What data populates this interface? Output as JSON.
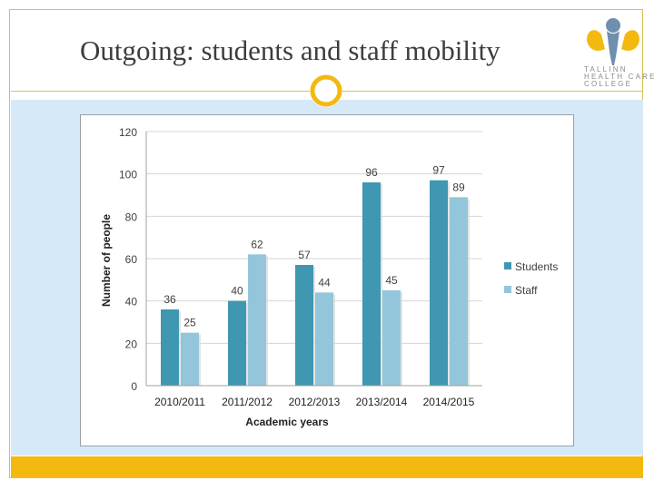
{
  "slide": {
    "title": "Outgoing: students and staff mobility"
  },
  "logo": {
    "line1": "TALLINN",
    "line2": "HEALTH CARE",
    "line3": "COLLEGE"
  },
  "colors": {
    "accent_gold": "#f4b90f",
    "frame_gold": "#d9c24a",
    "content_bg": "#d6e9f8",
    "students": "#3f97b1",
    "staff": "#93c6da"
  },
  "chart_data": {
    "type": "bar",
    "categories": [
      "2010/2011",
      "2011/2012",
      "2012/2013",
      "2013/2014",
      "2014/2015"
    ],
    "series": [
      {
        "name": "Students",
        "values": [
          36,
          40,
          57,
          96,
          97
        ]
      },
      {
        "name": "Staff",
        "values": [
          25,
          62,
          44,
          45,
          89
        ]
      }
    ],
    "xlabel": "Academic years",
    "ylabel": "Number of people",
    "ylim": [
      0,
      120
    ],
    "yticks": [
      0,
      20,
      40,
      60,
      80,
      100,
      120
    ],
    "grid": true,
    "legend": "right"
  }
}
